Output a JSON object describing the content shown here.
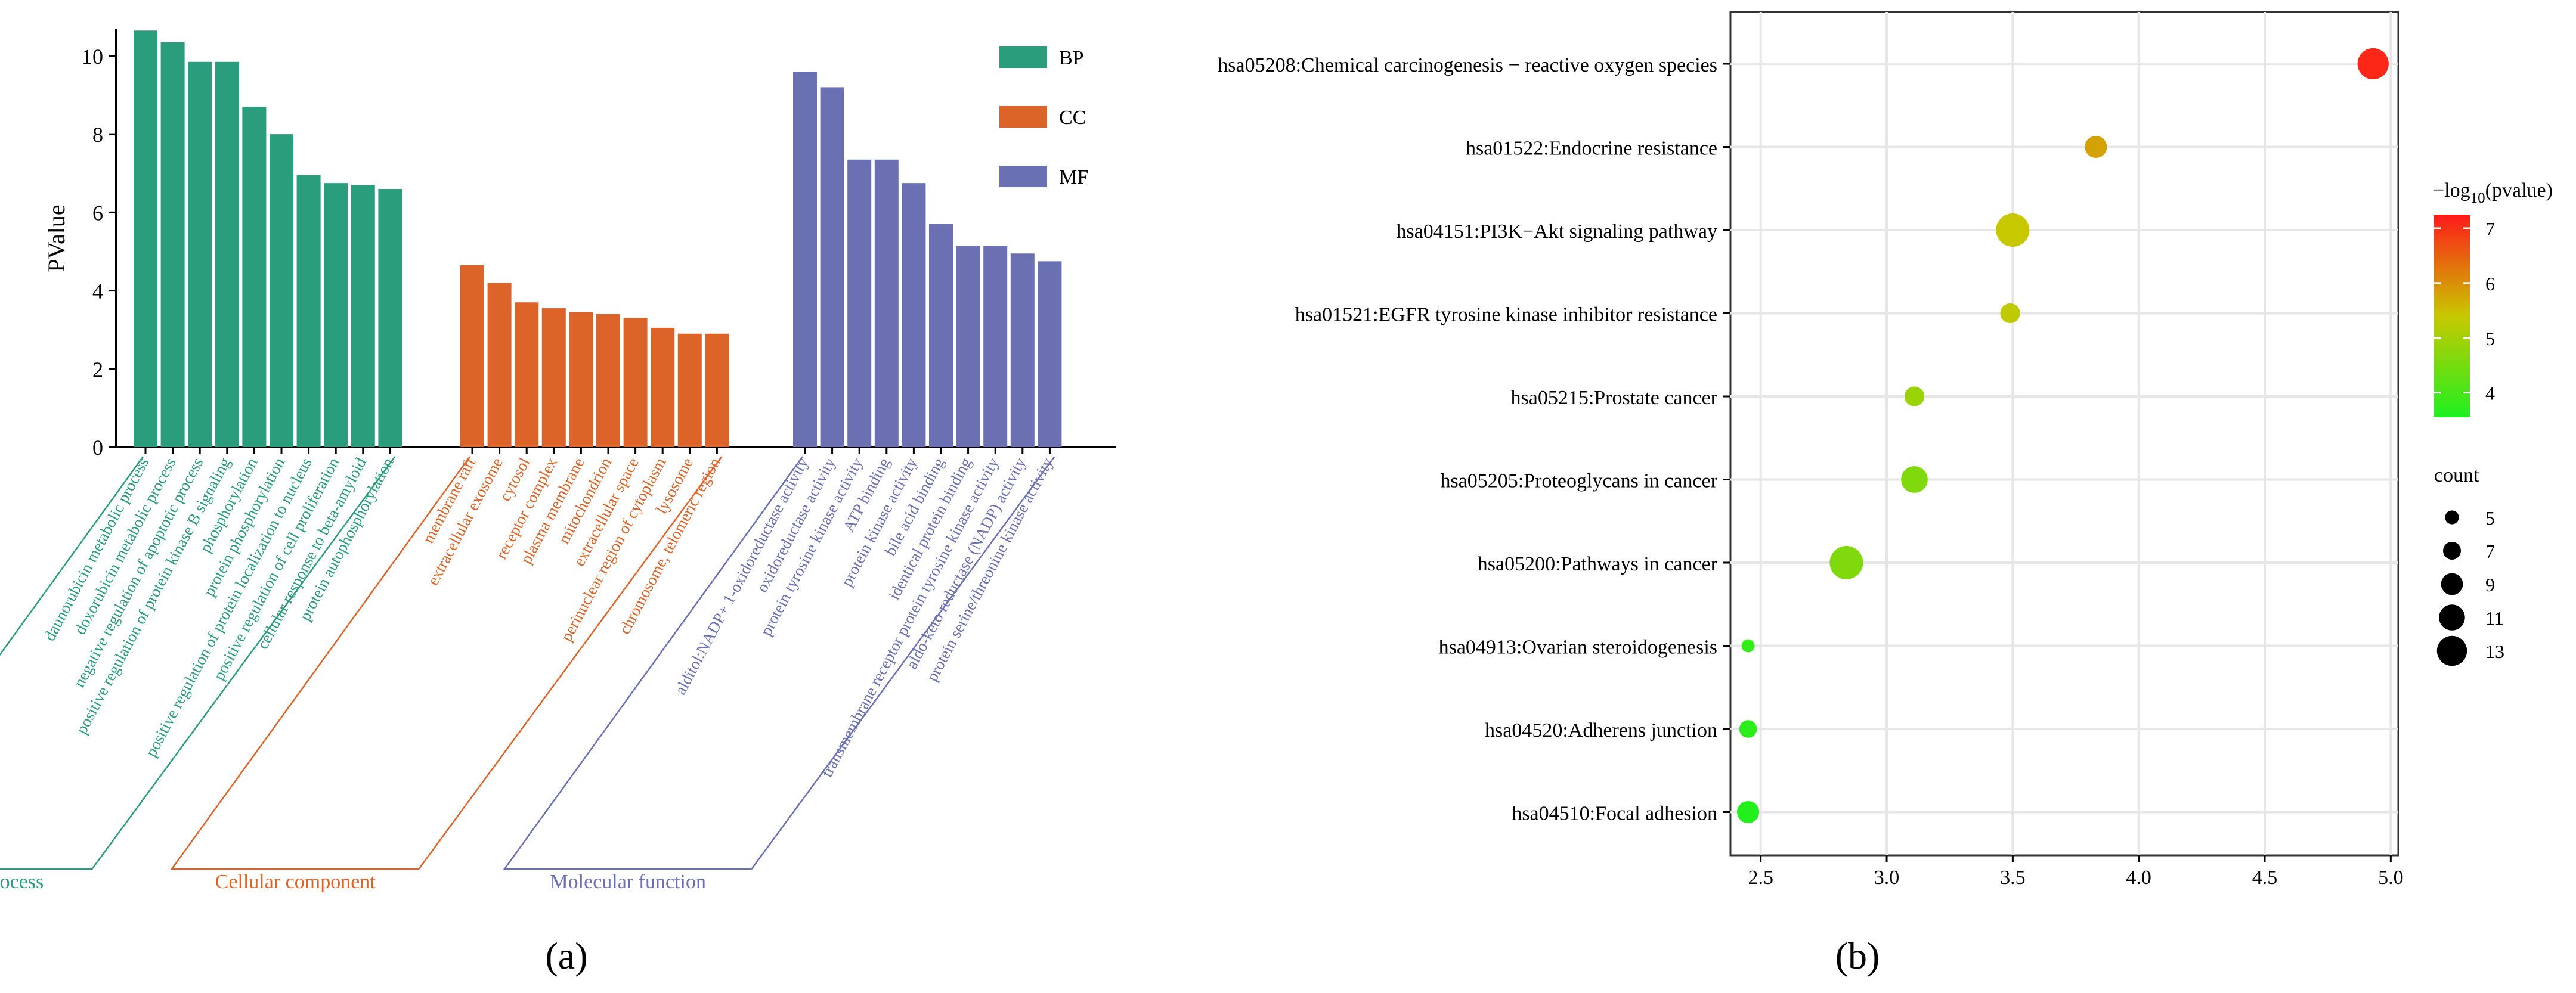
{
  "panel_labels": {
    "a": "(a)",
    "b": "(b)"
  },
  "colors": {
    "BP": "#2a9d7c",
    "CC": "#dc6428",
    "MF": "#6a70b2",
    "gradient_low": "#1ff01f",
    "gradient_mid": "#c8c800",
    "gradient_high": "#ff1a1a"
  },
  "chart_data": [
    {
      "type": "bar",
      "panel": "a",
      "ylabel": "PValue",
      "ylim": [
        0,
        10.7
      ],
      "yticks": [
        "0",
        "2",
        "4",
        "6",
        "8",
        "10"
      ],
      "legend": {
        "position": "top-right",
        "items": [
          "BP",
          "CC",
          "MF"
        ]
      },
      "groups": [
        {
          "key": "BP",
          "name": "Biological process",
          "categories": [
            "daunorubicin metabolic process",
            "doxorubicin metabolic process",
            "negative regulation of apoptotic process",
            "positive regulation of protein kinase B signaling",
            "phosphorylation",
            "protein phosphorylation",
            "positive regulation of protein localization to nucleus",
            "positive regulation of cell proliferation",
            "cellular response to beta-amyloid",
            "protein autophosphorylation"
          ],
          "values": [
            10.65,
            10.35,
            9.85,
            9.85,
            8.7,
            8.0,
            6.95,
            6.75,
            6.7,
            6.6
          ]
        },
        {
          "key": "CC",
          "name": "Cellular component",
          "categories": [
            "membrane raft",
            "extracellular exosome",
            "cytosol",
            "receptor complex",
            "plasma membrane",
            "mitochondrion",
            "extracellular space",
            "perinuclear region of cytoplasm",
            "lysosome",
            "chromosome, telomeric region"
          ],
          "values": [
            4.65,
            4.2,
            3.7,
            3.55,
            3.45,
            3.4,
            3.3,
            3.05,
            2.9,
            2.9
          ]
        },
        {
          "key": "MF",
          "name": "Molecular function",
          "categories": [
            "alditol:NADP+ 1-oxidoreductase activity",
            "oxidoreductase activity",
            "protein tyrosine kinase activity",
            "ATP binding",
            "protein kinase activity",
            "bile acid binding",
            "identical protein binding",
            "transmembrane receptor protein tyrosine kinase activity",
            "aldo-keto reductase (NADP) activity",
            "protein serine/threonine kinase activity"
          ],
          "values": [
            9.6,
            9.2,
            7.35,
            7.35,
            6.75,
            5.7,
            5.15,
            5.15,
            4.95,
            4.75
          ]
        }
      ]
    },
    {
      "type": "scatter",
      "panel": "b",
      "xlim": [
        2.38,
        5.03
      ],
      "xticks": [
        "2.5",
        "3.0",
        "3.5",
        "4.0",
        "4.5",
        "5.0"
      ],
      "points": [
        {
          "label": "hsa05208:Chemical carcinogenesis − reactive oxygen species",
          "x": 4.93,
          "count": 12,
          "neglog10p": 7.1
        },
        {
          "label": "hsa01522:Endocrine resistance",
          "x": 3.83,
          "count": 8,
          "neglog10p": 5.8
        },
        {
          "label": "hsa04151:PI3K−Akt signaling pathway",
          "x": 3.5,
          "count": 13,
          "neglog10p": 5.4
        },
        {
          "label": "hsa01521:EGFR tyrosine kinase inhibitor resistance",
          "x": 3.49,
          "count": 7,
          "neglog10p": 5.3
        },
        {
          "label": "hsa05215:Prostate cancer",
          "x": 3.11,
          "count": 7,
          "neglog10p": 4.9
        },
        {
          "label": "hsa05205:Proteoglycans in cancer",
          "x": 3.11,
          "count": 10,
          "neglog10p": 4.6
        },
        {
          "label": "hsa05200:Pathways in cancer",
          "x": 2.84,
          "count": 13,
          "neglog10p": 4.6
        },
        {
          "label": "hsa04913:Ovarian steroidogenesis",
          "x": 2.45,
          "count": 4,
          "neglog10p": 3.8
        },
        {
          "label": "hsa04520:Adherens junction",
          "x": 2.45,
          "count": 6,
          "neglog10p": 3.7
        },
        {
          "label": "hsa04510:Focal adhesion",
          "x": 2.45,
          "count": 8,
          "neglog10p": 3.6
        }
      ],
      "color_legend": {
        "title_prefix": "−log",
        "title_sub": "10",
        "title_suffix": "(pvalue)",
        "ticks": [
          "7",
          "6",
          "5",
          "4"
        ],
        "range": [
          3.55,
          7.25
        ]
      },
      "size_legend": {
        "title": "count",
        "entries": [
          "5",
          "7",
          "9",
          "11",
          "13"
        ]
      }
    }
  ]
}
